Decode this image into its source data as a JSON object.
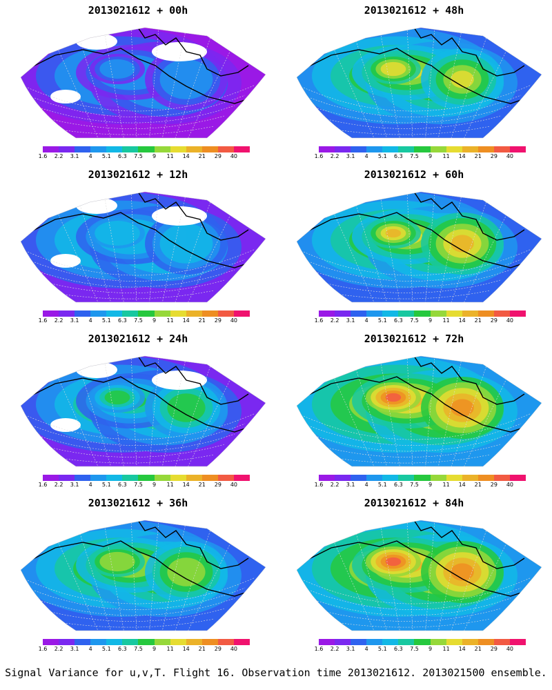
{
  "panels": [
    {
      "title": "2013021612 + 00h",
      "intensity": 0.15
    },
    {
      "title": "2013021612 + 48h",
      "intensity": 0.6
    },
    {
      "title": "2013021612 + 12h",
      "intensity": 0.25
    },
    {
      "title": "2013021612 + 60h",
      "intensity": 0.7
    },
    {
      "title": "2013021612 + 24h",
      "intensity": 0.4
    },
    {
      "title": "2013021612 + 72h",
      "intensity": 0.8
    },
    {
      "title": "2013021612 + 36h",
      "intensity": 0.5
    },
    {
      "title": "2013021612 + 84h",
      "intensity": 0.9
    }
  ],
  "colorbar": {
    "labels": [
      "1.6",
      "2.2",
      "3.1",
      "4",
      "5.1",
      "6.3",
      "7.5",
      "9",
      "11",
      "14",
      "21",
      "29",
      "40"
    ],
    "colors": [
      "#9a19e6",
      "#7a28f0",
      "#2f62ef",
      "#1e97ee",
      "#12b8e6",
      "#18c8a0",
      "#26c83e",
      "#96d83a",
      "#e6dc31",
      "#ebb229",
      "#ee8e22",
      "#f25a43",
      "#f0126e"
    ]
  },
  "footer": "Signal Variance for u,v,T. Flight 16. Observation time 2013021612. 2013021500 ensemble."
}
